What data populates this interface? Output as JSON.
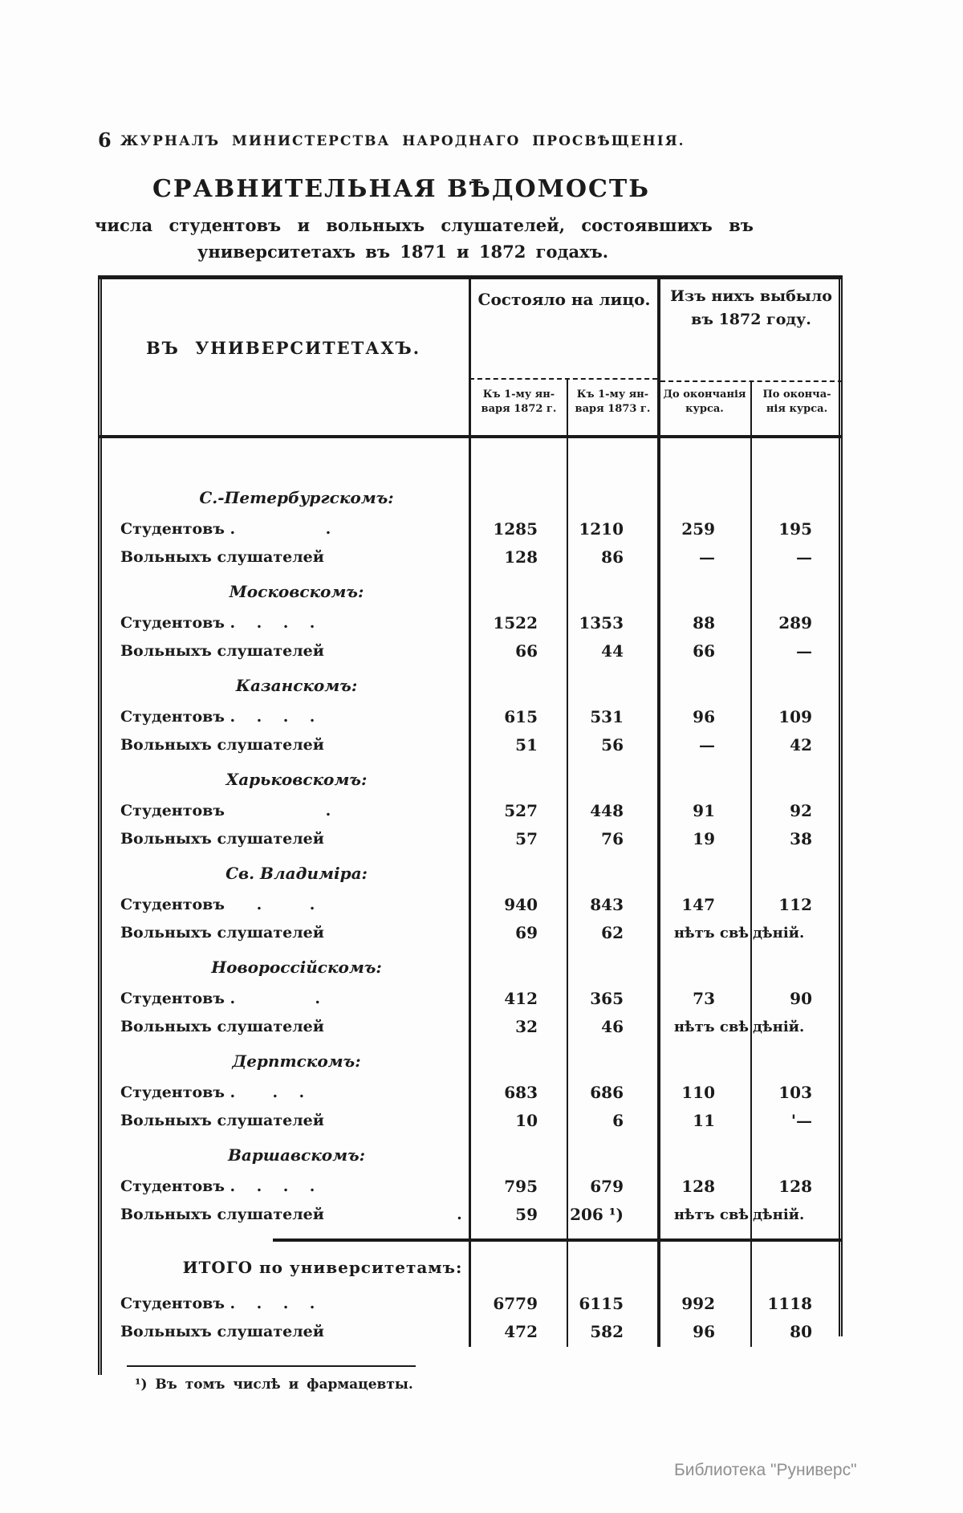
{
  "page": {
    "number": "6",
    "running_header": "ЖУРНАЛЪ МИНИСТЕРСТВА НАРОДНАГО ПРОСВѢЩЕНІЯ.",
    "title": "СРАВНИТЕЛЬНАЯ ВѢДОМОСТЬ",
    "subtitle_line1": "числа студентовъ и вольныхъ слушателей, состоявшихъ въ",
    "subtitle_line2": "университетахъ въ 1871 и 1872 годахъ.",
    "watermark": "Библиотека \"Руниверс\""
  },
  "table": {
    "header": {
      "universities": "ВЪ УНИВЕРСИТЕТАХЪ.",
      "group_present": "Состояло на лицо.",
      "sub1872": [
        "Къ 1-му ян-",
        "варя 1872 г."
      ],
      "sub1873": [
        "Къ 1-му ян-",
        "варя 1873 г."
      ],
      "group_departed": [
        "Изъ нихъ выбыло",
        "въ 1872 году."
      ],
      "sub_before": [
        "До окончанія",
        "курса."
      ],
      "sub_after": [
        "По оконча-",
        "нія курса."
      ]
    },
    "sections": [
      {
        "name": "С.-Петербургскомъ:",
        "rows": [
          {
            "label": "Студентовъ .                 .",
            "cells": [
              "1285",
              "1210",
              "259",
              "195"
            ],
            "note_span": false
          },
          {
            "label": "Вольныхъ слушателей",
            "cells": [
              "128",
              "86",
              "—",
              "—"
            ],
            "note_span": false
          }
        ]
      },
      {
        "name": "Московскомъ:",
        "rows": [
          {
            "label": "Студентовъ .    .    .    .",
            "cells": [
              "1522",
              "1353",
              "88",
              "289"
            ],
            "note_span": false
          },
          {
            "label": "Вольныхъ слушателей",
            "cells": [
              "66",
              "44",
              "66",
              "—"
            ],
            "note_span": false
          }
        ]
      },
      {
        "name": "Казанскомъ:",
        "rows": [
          {
            "label": "Студентовъ .    .    .    .",
            "cells": [
              "615",
              "531",
              "96",
              "109"
            ],
            "note_span": false
          },
          {
            "label": "Вольныхъ слушателей",
            "cells": [
              "51",
              "56",
              "—",
              "42"
            ],
            "note_span": false
          }
        ]
      },
      {
        "name": "Харьковскомъ:",
        "rows": [
          {
            "label": "Студентовъ                   .",
            "cells": [
              "527",
              "448",
              "91",
              "92"
            ],
            "note_span": false
          },
          {
            "label": "Вольныхъ слушателей",
            "cells": [
              "57",
              "76",
              "19",
              "38"
            ],
            "note_span": false
          }
        ]
      },
      {
        "name": "Св. Владиміра:",
        "rows": [
          {
            "label": "Студентовъ      .         .",
            "cells": [
              "940",
              "843",
              "147",
              "112"
            ],
            "note_span": false
          },
          {
            "label": "Вольныхъ слушателей",
            "cells": [
              "69",
              "62",
              "нѣтъ свѣ",
              "дѣній."
            ],
            "note_span": true
          }
        ]
      },
      {
        "name": "Новороссійскомъ:",
        "rows": [
          {
            "label": "Студентовъ .               .",
            "cells": [
              "412",
              "365",
              "73",
              "90"
            ],
            "note_span": false
          },
          {
            "label": "Вольныхъ слушателей",
            "cells": [
              "32",
              "46",
              "нѣтъ свѣ",
              "дѣній."
            ],
            "note_span": true
          }
        ]
      },
      {
        "name": "Дерптскомъ:",
        "rows": [
          {
            "label": "Студентовъ .       .    .",
            "cells": [
              "683",
              "686",
              "110",
              "103"
            ],
            "note_span": false
          },
          {
            "label": "Вольныхъ слушателей",
            "cells": [
              "10",
              "6",
              "11",
              "'—"
            ],
            "note_span": false
          }
        ]
      },
      {
        "name": "Варшавскомъ:",
        "rows": [
          {
            "label": "Студентовъ .    .    .    .",
            "cells": [
              "795",
              "679",
              "128",
              "128"
            ],
            "note_span": false
          },
          {
            "label": "Вольныхъ слушателей                         .",
            "cells": [
              "59",
              "206 ¹)",
              "нѣтъ свѣ",
              "дѣній."
            ],
            "note_span": true
          }
        ]
      }
    ],
    "totals": {
      "name": "ИТОГО по университетамъ:",
      "rows": [
        {
          "label": "Студентовъ .    .    .    .",
          "cells": [
            "6779",
            "6115",
            "992",
            "1118"
          ],
          "note_span": false
        },
        {
          "label": "Вольныхъ слушателей",
          "cells": [
            "472",
            "582",
            "96",
            "80"
          ],
          "note_span": false
        }
      ]
    },
    "footnote": "¹) Въ томъ числѣ и фармацевты."
  }
}
